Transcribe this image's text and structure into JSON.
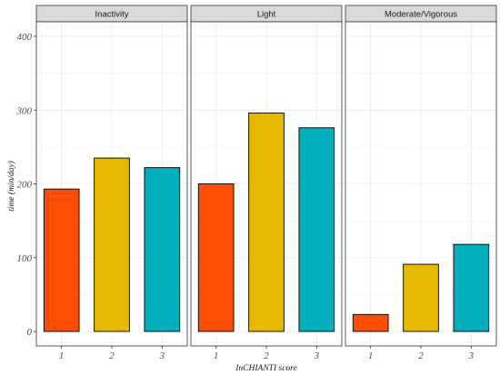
{
  "chart_data": {
    "type": "bar",
    "facets": [
      "Inactivity",
      "Light",
      "Moderate/Vigorous"
    ],
    "categories": [
      "1",
      "2",
      "3"
    ],
    "values": [
      [
        193,
        235,
        222
      ],
      [
        200,
        296,
        276
      ],
      [
        23,
        91,
        118
      ]
    ],
    "colors": [
      "#FC4E07",
      "#E7B800",
      "#00AFBB"
    ],
    "xlabel": "InCHIANTI score",
    "ylabel": "time (min/day)",
    "ylim": [
      0,
      400
    ],
    "yticks": [
      0,
      100,
      200,
      300,
      400
    ],
    "grid": true
  }
}
